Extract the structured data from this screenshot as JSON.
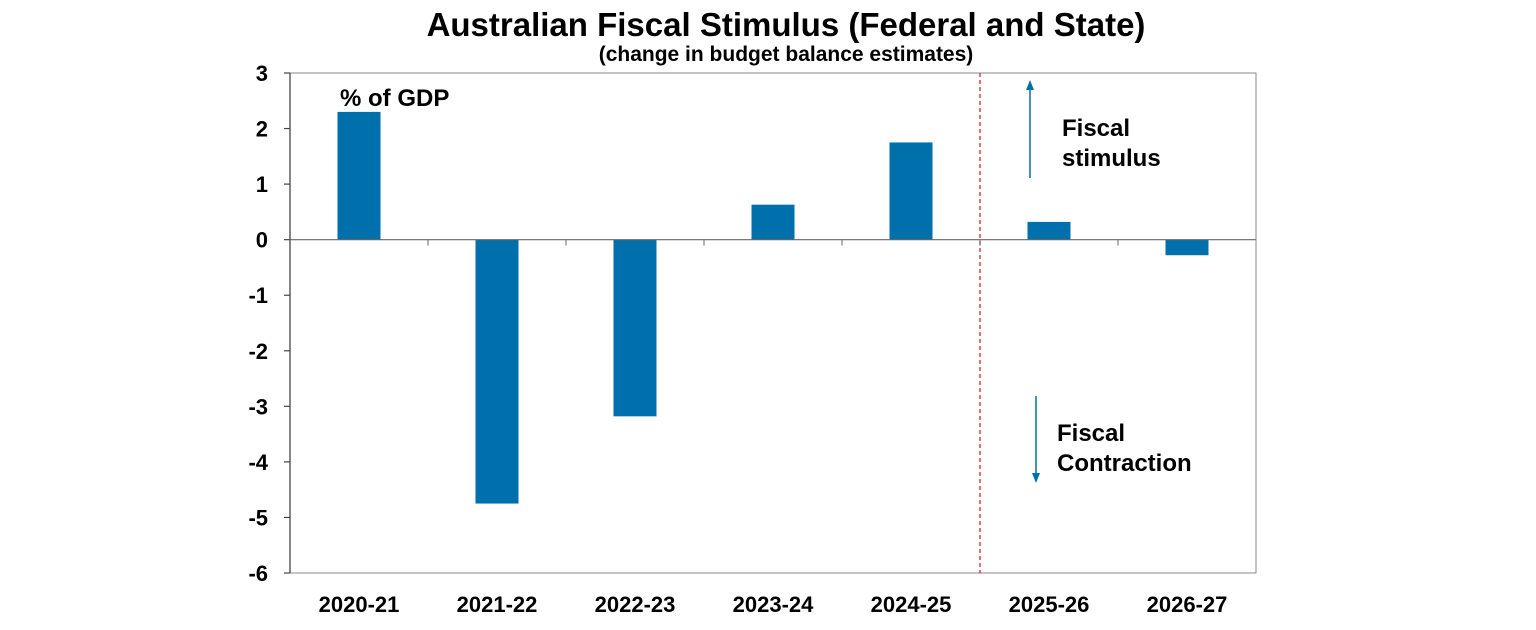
{
  "chart_data": {
    "type": "bar",
    "title": "Australian Fiscal Stimulus (Federal and State)",
    "subtitle": "(change in budget balance estimates)",
    "unit_label": "% of GDP",
    "categories": [
      "2020-21",
      "2021-22",
      "2022-23",
      "2023-24",
      "2024-25",
      "2025-26",
      "2026-27"
    ],
    "values": [
      2.3,
      -4.75,
      -3.18,
      0.63,
      1.75,
      0.32,
      -0.28
    ],
    "ylim": [
      -6,
      3
    ],
    "yticks": [
      3,
      2,
      1,
      0,
      -1,
      -2,
      -3,
      -4,
      -5,
      -6
    ],
    "ytick_labels": [
      "3",
      "2",
      "1",
      "0",
      "-1",
      "-2",
      "-3",
      "-4",
      "-5",
      "-6"
    ],
    "bar_color": "#0070AC",
    "divider": {
      "after_category": "2024-25",
      "color": "#E0202A",
      "style": "dashed"
    },
    "annotations": {
      "stimulus": [
        "Fiscal",
        "stimulus"
      ],
      "contraction": [
        "Fiscal",
        "Contraction"
      ]
    },
    "grid": false
  }
}
